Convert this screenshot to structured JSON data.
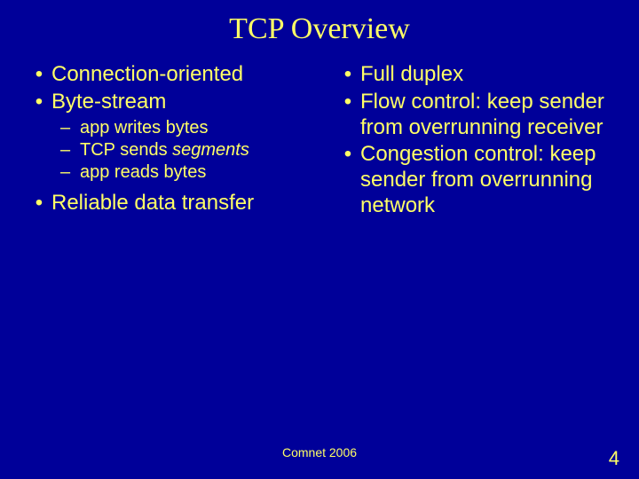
{
  "background_color": "#000099",
  "text_color": "#ffff66",
  "title": "TCP Overview",
  "left_col": {
    "b1": "Connection-oriented",
    "b2": "Byte-stream",
    "s1": "app writes bytes",
    "s2a": "TCP sends ",
    "s2b": "segments",
    "s3": "app reads bytes",
    "b3": "Reliable data transfer"
  },
  "right_col": {
    "b1": "Full duplex",
    "b2": "Flow control: keep sender from overrunning receiver",
    "b3": "Congestion control: keep sender from overrunning network"
  },
  "footer": "Comnet 2006",
  "page_number": "4"
}
